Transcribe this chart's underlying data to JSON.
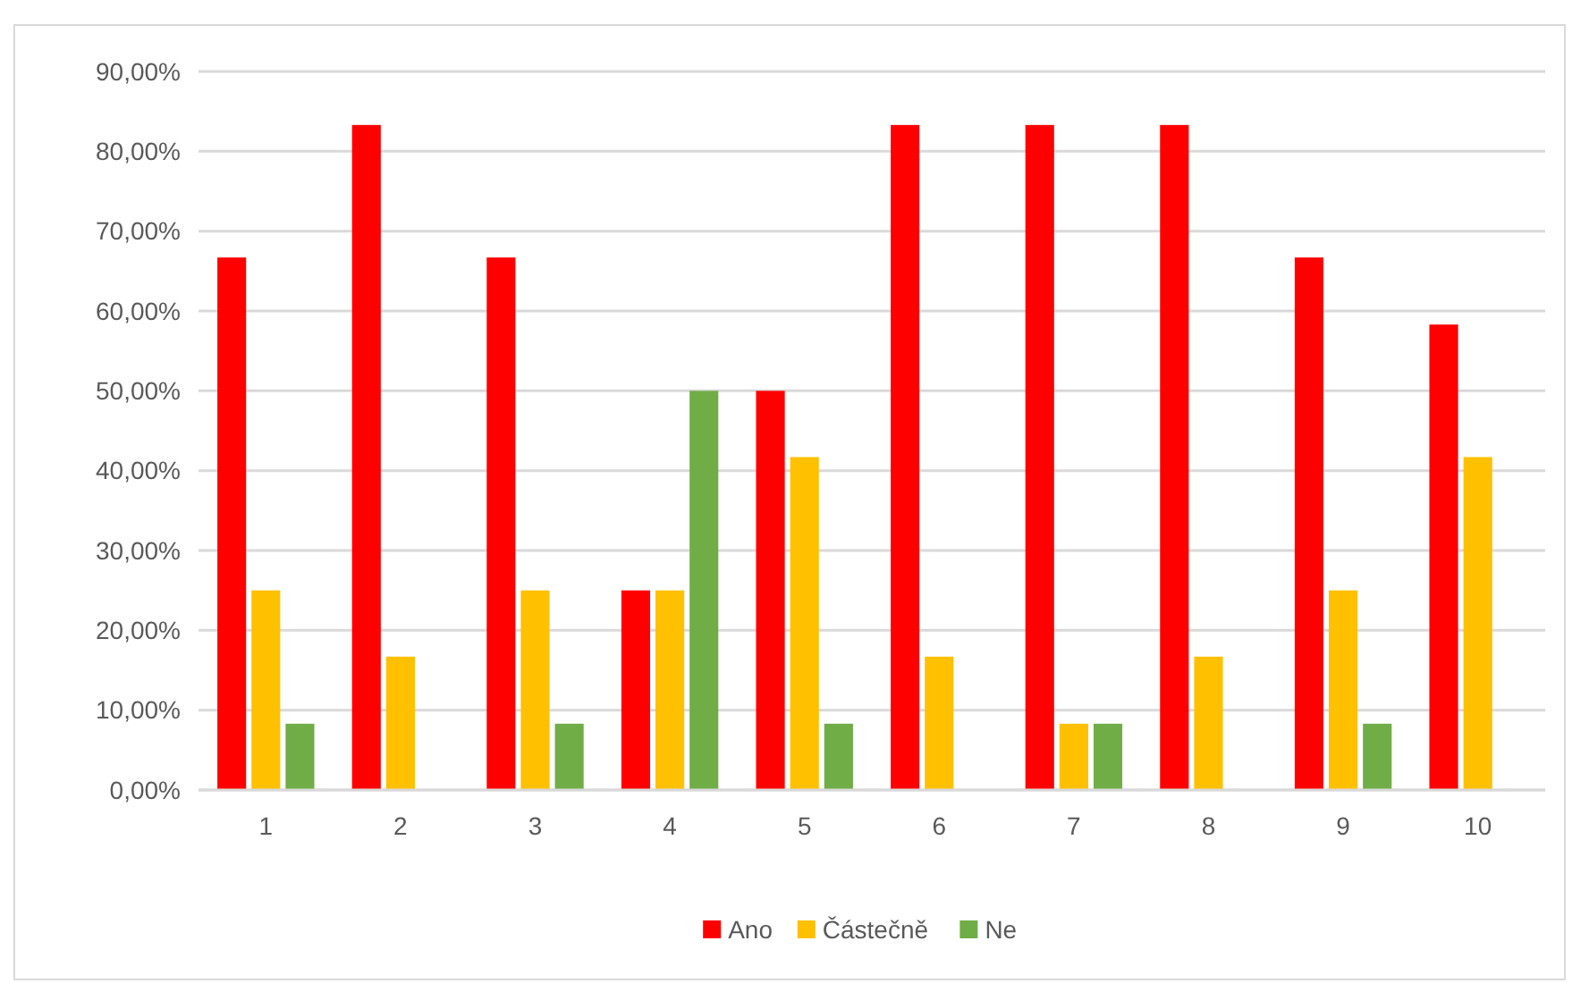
{
  "chart_data": {
    "type": "bar",
    "categories": [
      "1",
      "2",
      "3",
      "4",
      "5",
      "6",
      "7",
      "8",
      "9",
      "10"
    ],
    "series": [
      {
        "name": "Ano",
        "color": "#ff0000",
        "values": [
          66.7,
          83.3,
          66.7,
          25,
          50,
          83.3,
          83.3,
          83.3,
          66.7,
          58.3
        ]
      },
      {
        "name": "Částečně",
        "color": "#ffc000",
        "values": [
          25,
          16.7,
          25,
          25,
          41.7,
          16.7,
          8.3,
          16.7,
          25,
          41.7
        ]
      },
      {
        "name": "Ne",
        "color": "#70ad47",
        "values": [
          8.3,
          0,
          8.3,
          50,
          8.3,
          0,
          8.3,
          0,
          8.3,
          0
        ]
      }
    ],
    "ylim": [
      0,
      90
    ],
    "yticks": [
      {
        "value": 0,
        "label": "0,00%"
      },
      {
        "value": 10,
        "label": "10,00%"
      },
      {
        "value": 20,
        "label": "20,00%"
      },
      {
        "value": 30,
        "label": "30,00%"
      },
      {
        "value": 40,
        "label": "40,00%"
      },
      {
        "value": 50,
        "label": "50,00%"
      },
      {
        "value": 60,
        "label": "60,00%"
      },
      {
        "value": 70,
        "label": "70,00%"
      },
      {
        "value": 80,
        "label": "80,00%"
      },
      {
        "value": 90,
        "label": "90,00%"
      }
    ],
    "grid": "y",
    "legend": "bottom"
  }
}
